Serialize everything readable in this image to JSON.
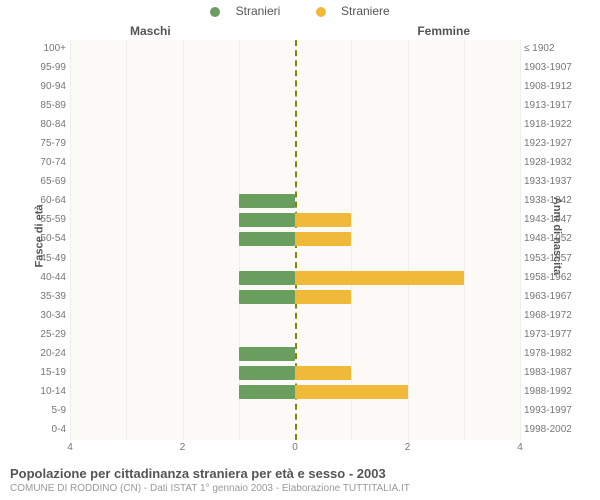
{
  "legend": {
    "male": {
      "label": "Stranieri",
      "color": "#6a9e5f"
    },
    "female": {
      "label": "Straniere",
      "color": "#f0b93a"
    }
  },
  "side_titles": {
    "left": "Maschi",
    "right": "Femmine"
  },
  "axis_labels": {
    "left": "Fasce di età",
    "right": "Anni di nascita"
  },
  "chart": {
    "type": "population-pyramid",
    "xlim": 4,
    "xticks_left": [
      4,
      2,
      0
    ],
    "xticks_right": [
      0,
      2,
      4
    ],
    "background": "#fbfaf6",
    "grid_color": "#eeeeee",
    "center_line_color": "#888800",
    "rows": [
      {
        "age": "100+",
        "years": "≤ 1902",
        "male": 0,
        "female": 0
      },
      {
        "age": "95-99",
        "years": "1903-1907",
        "male": 0,
        "female": 0
      },
      {
        "age": "90-94",
        "years": "1908-1912",
        "male": 0,
        "female": 0
      },
      {
        "age": "85-89",
        "years": "1913-1917",
        "male": 0,
        "female": 0
      },
      {
        "age": "80-84",
        "years": "1918-1922",
        "male": 0,
        "female": 0
      },
      {
        "age": "75-79",
        "years": "1923-1927",
        "male": 0,
        "female": 0
      },
      {
        "age": "70-74",
        "years": "1928-1932",
        "male": 0,
        "female": 0
      },
      {
        "age": "65-69",
        "years": "1933-1937",
        "male": 0,
        "female": 0
      },
      {
        "age": "60-64",
        "years": "1938-1942",
        "male": 1,
        "female": 0
      },
      {
        "age": "55-59",
        "years": "1943-1947",
        "male": 1,
        "female": 1
      },
      {
        "age": "50-54",
        "years": "1948-1952",
        "male": 1,
        "female": 1
      },
      {
        "age": "45-49",
        "years": "1953-1957",
        "male": 0,
        "female": 0
      },
      {
        "age": "40-44",
        "years": "1958-1962",
        "male": 1,
        "female": 3
      },
      {
        "age": "35-39",
        "years": "1963-1967",
        "male": 1,
        "female": 1
      },
      {
        "age": "30-34",
        "years": "1968-1972",
        "male": 0,
        "female": 0
      },
      {
        "age": "25-29",
        "years": "1973-1977",
        "male": 0,
        "female": 0
      },
      {
        "age": "20-24",
        "years": "1978-1982",
        "male": 1,
        "female": 0
      },
      {
        "age": "15-19",
        "years": "1983-1987",
        "male": 1,
        "female": 1
      },
      {
        "age": "10-14",
        "years": "1988-1992",
        "male": 1,
        "female": 2
      },
      {
        "age": "5-9",
        "years": "1993-1997",
        "male": 0,
        "female": 0
      },
      {
        "age": "0-4",
        "years": "1998-2002",
        "male": 0,
        "female": 0
      }
    ]
  },
  "footer": {
    "title": "Popolazione per cittadinanza straniera per età e sesso - 2003",
    "subtitle": "COMUNE DI RODDINO (CN) - Dati ISTAT 1° gennaio 2003 - Elaborazione TUTTITALIA.IT"
  }
}
